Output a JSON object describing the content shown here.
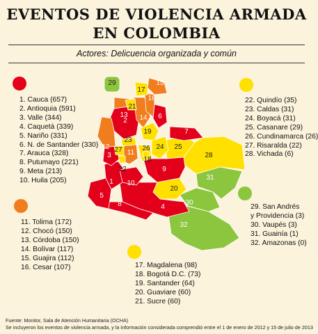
{
  "title_line1": "EVENTOS DE VIOLENCIA ARMADA",
  "title_line2": "EN COLOMBIA",
  "subtitle": "Actores: Delicuencia organizada y común",
  "colors": {
    "red": "#E3001B",
    "orange": "#F07D1E",
    "yellow": "#FFE000",
    "green": "#8CC63F",
    "background": "#FBF3DC"
  },
  "groups": {
    "red": [
      "1. Cauca (657)",
      "2. Antioquia (591)",
      "3. Valle (344)",
      "4. Caquetá (339)",
      "5. Nariño (331)",
      "6. N. de Santander (330)",
      "7. Arauca (328)",
      "8. Putumayo (221)",
      "9. Meta (213)",
      "10. Huila (205)"
    ],
    "orange": [
      "11. Tolima (172)",
      "12. Chocó (150)",
      "13. Córdoba (150)",
      "14. Bolívar (117)",
      "15. Guajira (112)",
      "16. Cesar (107)"
    ],
    "yellow_mid": [
      "17. Magdalena (98)",
      "18. Bogotá D.C. (73)",
      "19. Santander (64)",
      "20. Guaviare (60)",
      "21. Sucre (60)"
    ],
    "yellow": [
      "22. Quindío (35)",
      "23. Caldas (31)",
      "24. Boyacá (31)",
      "25. Casanare (29)",
      "26. Cundinamarca (26)",
      "27. Risaralda (22)",
      "28. Vichada (6)"
    ],
    "green": [
      "29. San Andrés",
      "y Providencia (3)",
      "30. Vaupés (3)",
      "31. Guainía (1)",
      "32. Amazonas (0)"
    ]
  },
  "map_labels": [
    "1",
    "2",
    "3",
    "4",
    "5",
    "6",
    "7",
    "8",
    "9",
    "10",
    "11",
    "12",
    "13",
    "14",
    "15",
    "16",
    "17",
    "18",
    "19",
    "20",
    "21",
    "22",
    "23",
    "24",
    "25",
    "26",
    "27",
    "28",
    "29",
    "30",
    "31",
    "32"
  ],
  "footer_line1": "Fuente: Monitor, Sala de Atención Humanitaria (OCHA)",
  "footer_line2": "Se incluyeron los eventos de violencia armada, y la información considerada comprendió entre el 1 de enero de 2012 y 15 de julio de 2013"
}
